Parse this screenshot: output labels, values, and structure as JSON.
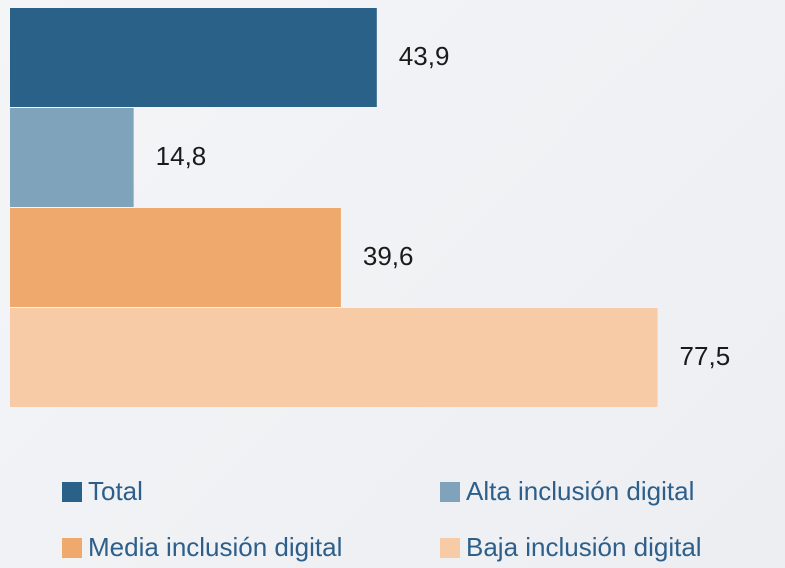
{
  "chart_data": {
    "type": "bar",
    "orientation": "horizontal",
    "xlim": [
      0,
      90
    ],
    "series": [
      {
        "name": "Total",
        "color": "#2a6189",
        "values": [
          43.9
        ],
        "value_labels": [
          "43,9"
        ]
      },
      {
        "name": "Alta inclusión digital",
        "color": "#7fa3bb",
        "values": [
          14.8
        ],
        "value_labels": [
          "14,8"
        ]
      },
      {
        "name": "Media inclusión digital",
        "color": "#f0a96c",
        "values": [
          39.6
        ],
        "value_labels": [
          "39,6"
        ]
      },
      {
        "name": "Baja inclusión digital",
        "color": "#f7cba6",
        "values": [
          77.5
        ],
        "value_labels": [
          "77,5"
        ]
      }
    ],
    "legend": "bottom"
  }
}
